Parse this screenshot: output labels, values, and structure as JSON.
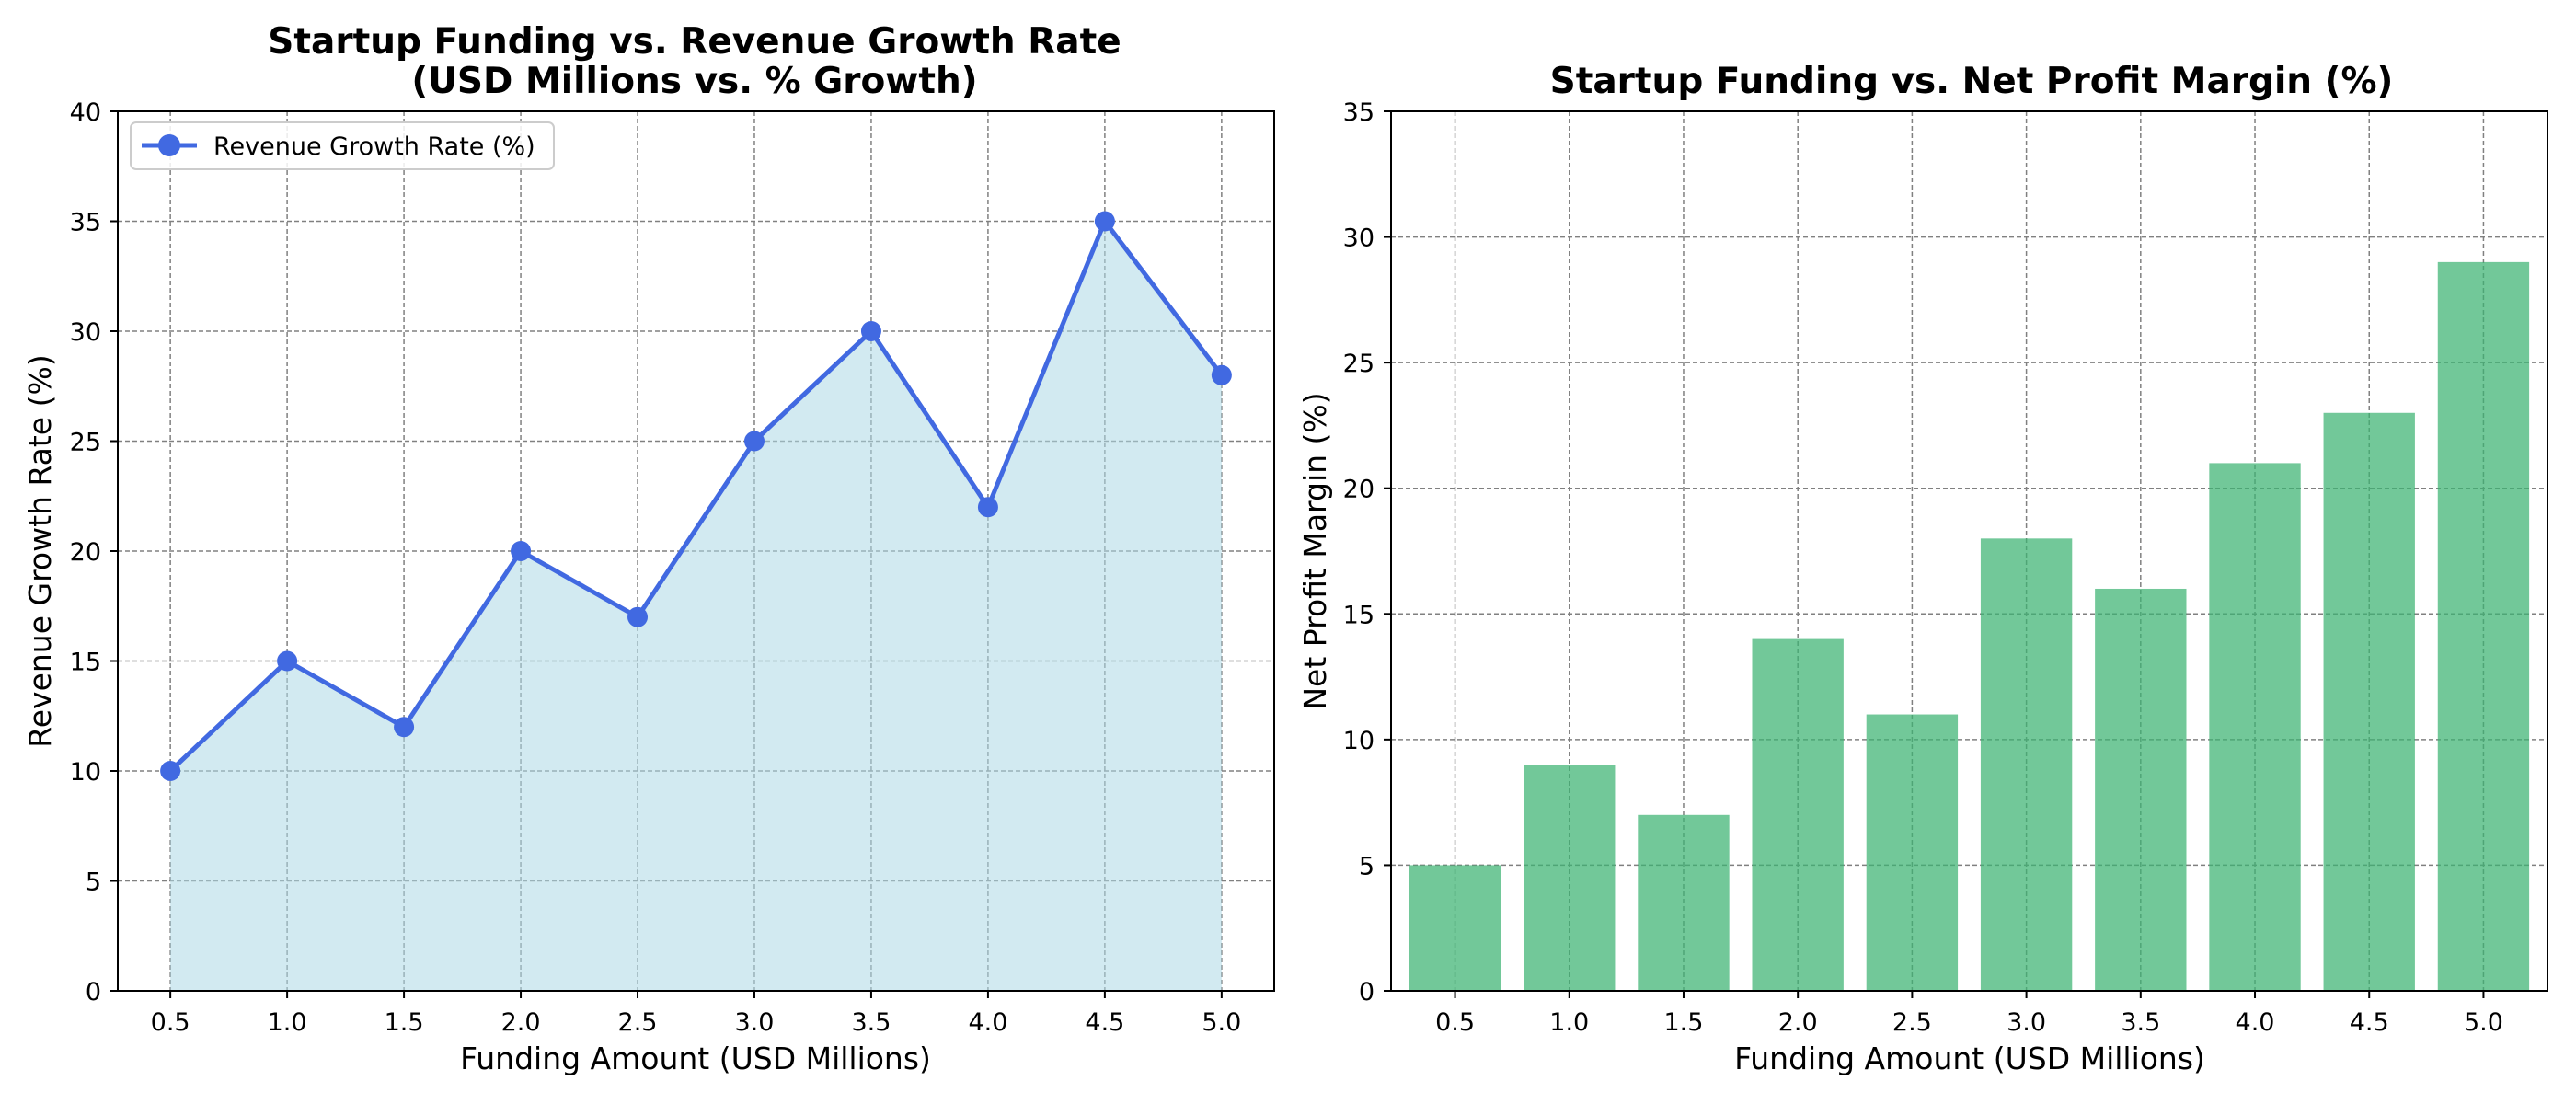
{
  "colors": {
    "line": "#4169e1",
    "fill": "#add8e6",
    "bar": "#3cb371",
    "grid": "#808080"
  },
  "chart_data": [
    {
      "type": "area",
      "title_line1": "Startup Funding vs. Revenue Growth Rate",
      "title_line2": "(USD Millions vs. % Growth)",
      "xlabel": "Funding Amount (USD Millions)",
      "ylabel": "Revenue Growth Rate (%)",
      "x": [
        0.5,
        1.0,
        1.5,
        2.0,
        2.5,
        3.0,
        3.5,
        4.0,
        4.5,
        5.0
      ],
      "x_tick_labels": [
        "0.5",
        "1.0",
        "1.5",
        "2.0",
        "2.5",
        "3.0",
        "3.5",
        "4.0",
        "4.5",
        "5.0"
      ],
      "series": [
        {
          "name": "Revenue Growth Rate (%)",
          "values": [
            10,
            15,
            12,
            20,
            17,
            25,
            30,
            22,
            35,
            28
          ]
        }
      ],
      "ylim": [
        0,
        40
      ],
      "y_ticks": [
        0,
        5,
        10,
        15,
        20,
        25,
        30,
        35,
        40
      ],
      "grid": true,
      "legend": "upper-left",
      "marker": "circle"
    },
    {
      "type": "bar",
      "title": "Startup Funding vs. Net Profit Margin (%)",
      "xlabel": "Funding Amount (USD Millions)",
      "ylabel": "Net Profit Margin (%)",
      "categories": [
        "0.5",
        "1.0",
        "1.5",
        "2.0",
        "2.5",
        "3.0",
        "3.5",
        "4.0",
        "4.5",
        "5.0"
      ],
      "values": [
        5,
        9,
        7,
        14,
        11,
        18,
        16,
        21,
        23,
        29
      ],
      "ylim": [
        0,
        35
      ],
      "y_ticks": [
        0,
        5,
        10,
        15,
        20,
        25,
        30,
        35
      ],
      "grid": true
    }
  ]
}
